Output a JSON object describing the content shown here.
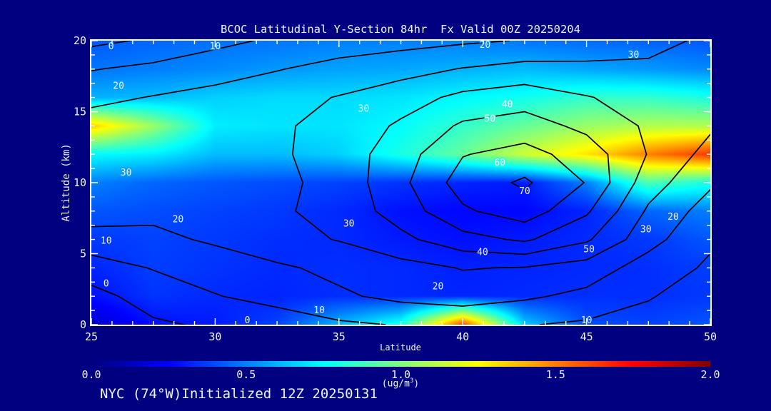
{
  "chart": {
    "title": "BCOC Latitudinal Y-Section 84hr  Fx Valid 00Z 20250204",
    "xlabel": "Latitude",
    "ylabel": "Altitude (km)",
    "annotation": "NYC (74°W)Initialized 12Z 20250131",
    "unit": {
      "pre": "(ug/m",
      "sup": "3",
      "post": ")"
    }
  },
  "colors": {
    "background": "#000080",
    "frame": "#ffffff",
    "text": "#eef4ff",
    "contour": "#000000",
    "colormap": "jet"
  },
  "chart_data": {
    "type": "filled_contour_section",
    "title": "BCOC Latitudinal Y-Section 84hr  Fx Valid 00Z 20250204",
    "x_axis": {
      "label": "Latitude",
      "range": [
        25,
        50
      ],
      "ticks": [
        25,
        30,
        35,
        40,
        45,
        50
      ],
      "minor_per_major": 6
    },
    "y_axis": {
      "label": "Altitude (km)",
      "range": [
        0,
        20
      ],
      "ticks": [
        0,
        5,
        10,
        15,
        20
      ],
      "minor_per_major": 5
    },
    "colorbar": {
      "range": [
        0,
        2
      ],
      "tick_values": [
        0,
        0.5,
        1,
        1.5,
        2
      ],
      "ticks": [
        "0.0",
        "0.5",
        "1.0",
        "1.5",
        "2.0"
      ],
      "unit": "(ug/m^3)",
      "colormap": "jet"
    },
    "grid": {
      "lats": [
        25,
        27.5,
        30,
        32.5,
        35,
        37.5,
        40,
        42.5,
        45,
        47.5,
        50
      ],
      "alts": [
        20,
        18,
        16,
        14,
        12,
        10,
        8,
        6,
        4,
        2,
        0
      ]
    },
    "fill_ug_m3": [
      [
        0.42,
        0.45,
        0.47,
        0.48,
        0.5,
        0.5,
        0.5,
        0.48,
        0.46,
        0.44,
        0.42
      ],
      [
        0.48,
        0.5,
        0.52,
        0.55,
        0.57,
        0.58,
        0.6,
        0.62,
        0.58,
        0.55,
        0.52
      ],
      [
        0.6,
        0.62,
        0.66,
        0.68,
        0.68,
        0.7,
        0.74,
        0.78,
        0.85,
        0.85,
        0.8
      ],
      [
        1.35,
        1.05,
        0.72,
        0.7,
        0.7,
        0.75,
        0.85,
        0.95,
        1.05,
        1.1,
        1.1
      ],
      [
        0.75,
        0.72,
        0.62,
        0.62,
        0.66,
        0.8,
        0.95,
        1.15,
        1.3,
        1.5,
        1.65
      ],
      [
        0.5,
        0.45,
        0.42,
        0.4,
        0.38,
        0.35,
        0.32,
        0.3,
        0.5,
        0.9,
        0.8
      ],
      [
        0.42,
        0.4,
        0.38,
        0.36,
        0.33,
        0.28,
        0.26,
        0.26,
        0.32,
        0.45,
        0.5
      ],
      [
        0.36,
        0.38,
        0.36,
        0.34,
        0.33,
        0.3,
        0.28,
        0.3,
        0.33,
        0.36,
        0.42
      ],
      [
        0.32,
        0.37,
        0.35,
        0.33,
        0.34,
        0.33,
        0.31,
        0.32,
        0.33,
        0.34,
        0.37
      ],
      [
        0.28,
        0.35,
        0.33,
        0.32,
        0.34,
        0.33,
        0.32,
        0.33,
        0.34,
        0.34,
        0.36
      ],
      [
        0.15,
        0.28,
        0.3,
        0.38,
        0.6,
        0.8,
        1.6,
        0.65,
        0.4,
        0.38,
        0.42
      ]
    ],
    "contour": {
      "levels": [
        0,
        10,
        20,
        30,
        40,
        50,
        60,
        70
      ],
      "values": [
        [
          -2,
          2,
          8,
          12,
          15,
          17,
          19,
          21,
          24,
          28,
          32
        ],
        [
          10,
          13,
          16,
          20,
          24,
          27,
          31,
          34,
          33,
          32,
          33
        ],
        [
          18,
          21,
          24,
          27,
          31,
          36,
          43,
          46,
          41,
          37,
          34
        ],
        [
          25,
          27,
          27,
          29,
          34,
          42,
          52,
          55,
          48,
          39,
          32
        ],
        [
          29,
          29,
          27,
          29,
          35,
          46,
          60,
          64,
          56,
          40,
          27
        ],
        [
          30,
          28,
          26,
          28,
          34,
          48,
          65,
          72,
          60,
          35,
          22
        ],
        [
          26,
          23,
          24,
          29,
          34,
          45,
          59,
          66,
          52,
          29,
          16
        ],
        [
          16,
          18,
          22,
          27,
          31,
          38,
          47,
          52,
          42,
          24,
          12
        ],
        [
          6,
          11,
          15,
          19,
          23,
          27,
          31,
          30,
          26,
          16,
          9
        ],
        [
          -3,
          5,
          10,
          14,
          19,
          23,
          25,
          22,
          18,
          11,
          7
        ],
        [
          -4,
          -1,
          2,
          5,
          9,
          11,
          12,
          11,
          9,
          8,
          5
        ]
      ],
      "labels": [
        {
          "value": 0,
          "lat": 25.8,
          "alt": 19.6
        },
        {
          "value": 10,
          "lat": 30.0,
          "alt": 19.6
        },
        {
          "value": 20,
          "lat": 40.9,
          "alt": 19.7
        },
        {
          "value": 30,
          "lat": 46.9,
          "alt": 19.0
        },
        {
          "value": 20,
          "lat": 26.1,
          "alt": 16.8
        },
        {
          "value": 30,
          "lat": 36.0,
          "alt": 15.2
        },
        {
          "value": 40,
          "lat": 41.8,
          "alt": 15.5
        },
        {
          "value": 50,
          "lat": 41.1,
          "alt": 14.5
        },
        {
          "value": 60,
          "lat": 41.5,
          "alt": 11.4
        },
        {
          "value": 70,
          "lat": 42.5,
          "alt": 9.4
        },
        {
          "value": 30,
          "lat": 26.4,
          "alt": 10.7
        },
        {
          "value": 20,
          "lat": 28.5,
          "alt": 7.4
        },
        {
          "value": 10,
          "lat": 25.6,
          "alt": 5.9
        },
        {
          "value": 0,
          "lat": 25.6,
          "alt": 2.9
        },
        {
          "value": 30,
          "lat": 35.4,
          "alt": 7.1
        },
        {
          "value": 40,
          "lat": 40.8,
          "alt": 5.1
        },
        {
          "value": 50,
          "lat": 45.1,
          "alt": 5.3
        },
        {
          "value": 30,
          "lat": 47.4,
          "alt": 6.7
        },
        {
          "value": 20,
          "lat": 48.5,
          "alt": 7.6
        },
        {
          "value": 20,
          "lat": 39.0,
          "alt": 2.7
        },
        {
          "value": 10,
          "lat": 34.2,
          "alt": 1.0
        },
        {
          "value": 0,
          "lat": 31.3,
          "alt": 0.3
        },
        {
          "value": 10,
          "lat": 45.0,
          "alt": 0.3
        }
      ]
    }
  }
}
